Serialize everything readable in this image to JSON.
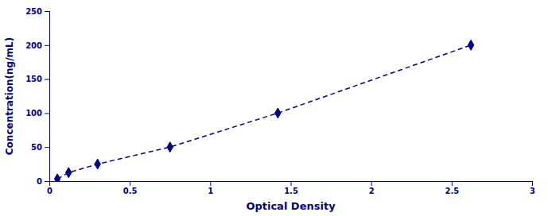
{
  "chart_data": {
    "type": "line",
    "x": [
      0.05,
      0.12,
      0.3,
      0.75,
      1.42,
      2.62
    ],
    "values": [
      3.125,
      12.5,
      25,
      50,
      100,
      200
    ],
    "color": "#00008B",
    "marker": "diamond",
    "line_style": "dashed",
    "xlabel": "Optical Density",
    "ylabel": "Concentration(ng/mL)",
    "xlim": [
      0,
      3
    ],
    "ylim": [
      0,
      250
    ],
    "xticks": [
      0,
      0.5,
      1,
      1.5,
      2,
      2.5,
      3
    ],
    "yticks": [
      0,
      50,
      100,
      150,
      200,
      250
    ],
    "grid": false
  }
}
